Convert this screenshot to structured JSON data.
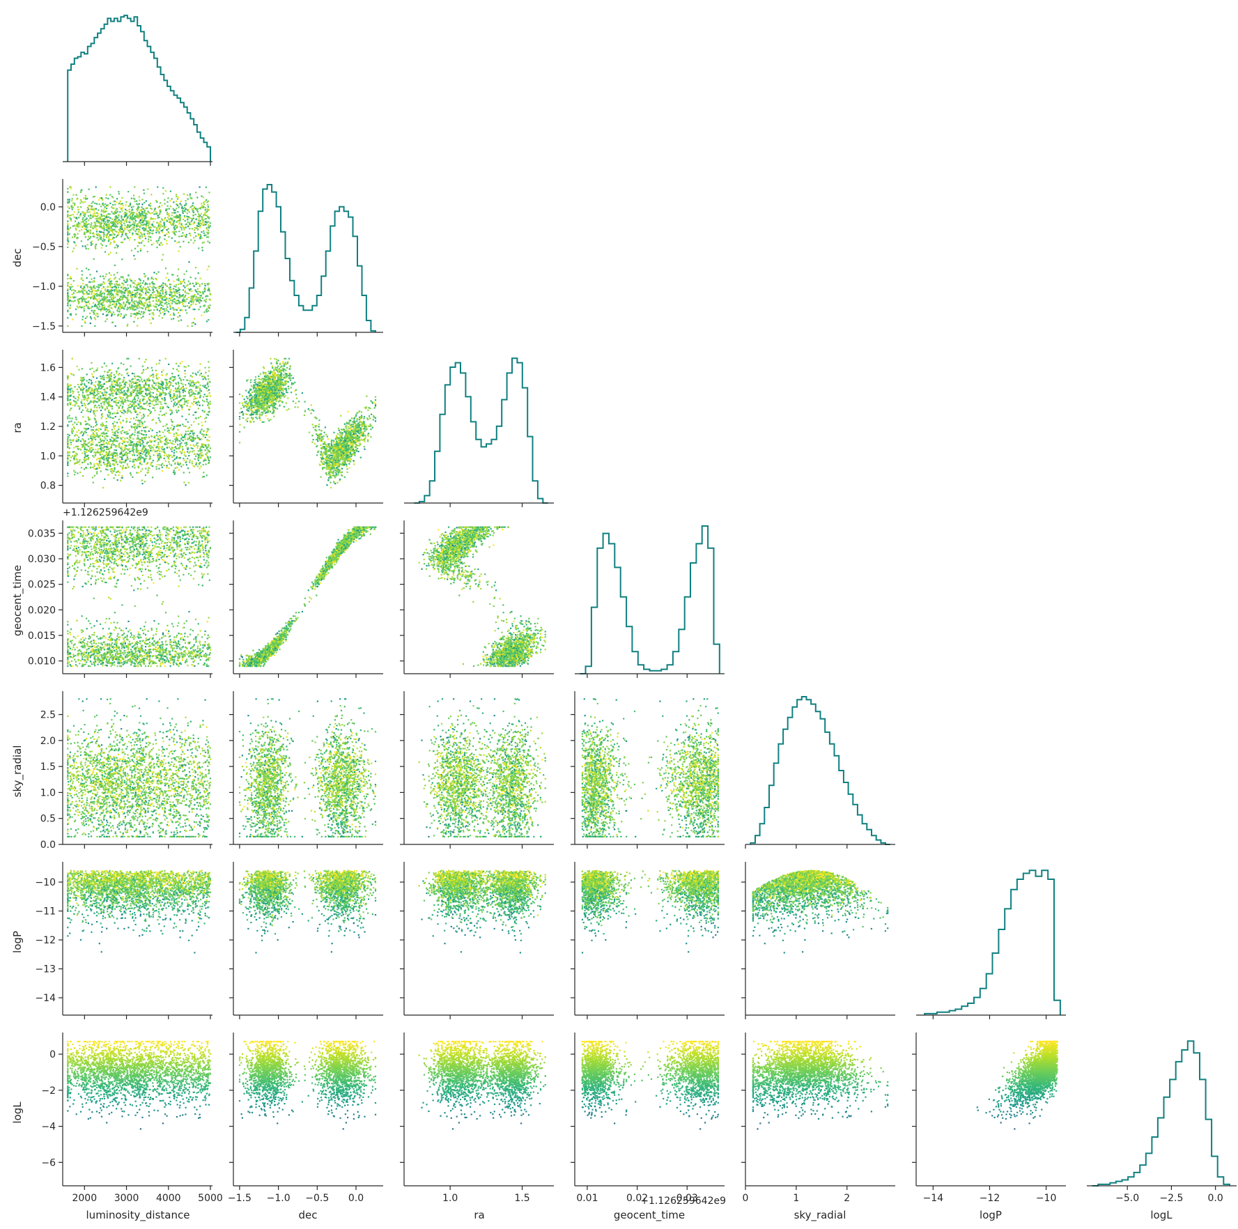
{
  "figure": {
    "variables": [
      "luminosity_distance",
      "dec",
      "ra",
      "geocent_time",
      "sky_radial",
      "logP",
      "logL"
    ],
    "offset_label": "+1.126259642e9",
    "colors": {
      "hist_line": "#0f7f7f",
      "axis": "#262626",
      "colormap": "viridis"
    }
  },
  "chart_data": {
    "type": "corner",
    "colored_by": "logL",
    "variables": [
      {
        "name": "luminosity_distance",
        "label": "luminosity_distance",
        "range": [
          1480,
          5050
        ],
        "ticks": [
          2000,
          3000,
          4000,
          5000
        ],
        "tick_labels": [
          "2000",
          "3000",
          "4000",
          "5000"
        ]
      },
      {
        "name": "dec",
        "label": "dec",
        "range": [
          -1.58,
          0.35
        ],
        "ticks": [
          -1.5,
          -1.0,
          -0.5,
          0.0
        ],
        "tick_labels": [
          "−1.5",
          "−1.0",
          "−0.5",
          "0.0"
        ]
      },
      {
        "name": "ra",
        "label": "ra",
        "range": [
          0.68,
          1.72
        ],
        "ticks": [
          0.8,
          1.0,
          1.2,
          1.4,
          1.6
        ],
        "tick_labels": [
          "0.8",
          "1.0",
          "1.2",
          "1.4",
          "1.6"
        ],
        "x_ticks": [
          1.0,
          1.5
        ],
        "x_tick_labels": [
          "1.0",
          "1.5"
        ]
      },
      {
        "name": "geocent_time",
        "label": "geocent_time",
        "range": [
          0.0075,
          0.0375
        ],
        "ticks": [
          0.01,
          0.015,
          0.02,
          0.025,
          0.03,
          0.035
        ],
        "tick_labels": [
          "0.010",
          "0.015",
          "0.020",
          "0.025",
          "0.030",
          "0.035"
        ],
        "x_ticks": [
          0.01,
          0.02,
          0.03
        ],
        "x_tick_labels": [
          "0.01",
          "0.02",
          "0.03"
        ],
        "offset": "+1.126259642e9"
      },
      {
        "name": "sky_radial",
        "label": "sky_radial",
        "range": [
          0.0,
          2.95
        ],
        "ticks": [
          0.0,
          0.5,
          1.0,
          1.5,
          2.0,
          2.5
        ],
        "tick_labels": [
          "0.0",
          "0.5",
          "1.0",
          "1.5",
          "2.0",
          "2.5"
        ],
        "x_ticks": [
          0,
          1,
          2
        ],
        "x_tick_labels": [
          "0",
          "1",
          "2"
        ]
      },
      {
        "name": "logP",
        "label": "logP",
        "range": [
          -14.6,
          -9.3
        ],
        "ticks": [
          -14,
          -13,
          -12,
          -11,
          -10
        ],
        "tick_labels": [
          "−14",
          "−13",
          "−12",
          "−11",
          "−10"
        ],
        "x_ticks": [
          -14,
          -12,
          -10
        ],
        "x_tick_labels": [
          "−14",
          "−12",
          "−10"
        ]
      },
      {
        "name": "logL",
        "label": "logL",
        "range": [
          -7.3,
          1.2
        ],
        "ticks": [
          -6,
          -4,
          -2,
          0
        ],
        "tick_labels": [
          "−6",
          "−4",
          "−2",
          "0"
        ],
        "x_ticks": [
          -5.0,
          -2.5,
          0.0
        ],
        "x_tick_labels": [
          "−5.0",
          "−2.5",
          "0.0"
        ]
      }
    ],
    "histograms": [
      {
        "variable": "luminosity_distance",
        "bins": [
          1600,
          5000
        ],
        "counts": [
          0.62,
          0.66,
          0.7,
          0.71,
          0.74,
          0.73,
          0.78,
          0.8,
          0.84,
          0.87,
          0.9,
          0.93,
          0.97,
          0.95,
          0.97,
          0.95,
          0.98,
          0.99,
          0.97,
          0.95,
          0.98,
          0.92,
          0.88,
          0.82,
          0.78,
          0.74,
          0.7,
          0.64,
          0.59,
          0.55,
          0.51,
          0.48,
          0.45,
          0.43,
          0.4,
          0.37,
          0.33,
          0.29,
          0.25,
          0.2,
          0.16,
          0.13,
          0.1
        ]
      },
      {
        "variable": "dec",
        "bins": [
          -1.55,
          0.25
        ],
        "counts": [
          0.0,
          0.02,
          0.1,
          0.3,
          0.55,
          0.82,
          0.97,
          1.0,
          0.95,
          0.85,
          0.68,
          0.5,
          0.35,
          0.25,
          0.18,
          0.15,
          0.15,
          0.18,
          0.25,
          0.38,
          0.55,
          0.72,
          0.82,
          0.85,
          0.82,
          0.78,
          0.65,
          0.45,
          0.25,
          0.08,
          0.01
        ]
      },
      {
        "variable": "ra",
        "bins": [
          0.75,
          1.68
        ],
        "counts": [
          0.0,
          0.01,
          0.05,
          0.15,
          0.35,
          0.6,
          0.8,
          0.92,
          0.95,
          0.88,
          0.72,
          0.55,
          0.43,
          0.38,
          0.4,
          0.43,
          0.52,
          0.7,
          0.88,
          0.98,
          0.95,
          0.78,
          0.45,
          0.15,
          0.03,
          0.0
        ]
      },
      {
        "variable": "geocent_time",
        "bins": [
          0.0085,
          0.0365
        ],
        "counts": [
          0.0,
          0.05,
          0.45,
          0.85,
          0.95,
          0.88,
          0.72,
          0.52,
          0.32,
          0.15,
          0.06,
          0.03,
          0.02,
          0.02,
          0.03,
          0.06,
          0.15,
          0.3,
          0.52,
          0.75,
          0.88,
          1.0,
          0.85,
          0.2
        ]
      },
      {
        "variable": "sky_radial",
        "bins": [
          0.1,
          2.85
        ],
        "counts": [
          0.01,
          0.06,
          0.14,
          0.25,
          0.4,
          0.55,
          0.68,
          0.78,
          0.86,
          0.93,
          0.98,
          1.0,
          0.98,
          0.95,
          0.9,
          0.85,
          0.76,
          0.68,
          0.6,
          0.5,
          0.42,
          0.34,
          0.27,
          0.2,
          0.14,
          0.1,
          0.06,
          0.03,
          0.01,
          0.0
        ]
      },
      {
        "variable": "logP",
        "bins": [
          -14.3,
          -9.5
        ],
        "counts": [
          0.01,
          0.01,
          0.02,
          0.02,
          0.03,
          0.04,
          0.06,
          0.08,
          0.12,
          0.18,
          0.28,
          0.42,
          0.58,
          0.72,
          0.85,
          0.92,
          0.96,
          0.98,
          0.94,
          0.98,
          0.92,
          0.1
        ]
      },
      {
        "variable": "logL",
        "bins": [
          -7.0,
          0.8
        ],
        "counts": [
          0.0,
          0.01,
          0.01,
          0.02,
          0.03,
          0.04,
          0.06,
          0.09,
          0.14,
          0.22,
          0.33,
          0.46,
          0.6,
          0.72,
          0.84,
          0.92,
          0.98,
          0.9,
          0.72,
          0.45,
          0.2,
          0.06,
          0.01
        ]
      }
    ]
  }
}
